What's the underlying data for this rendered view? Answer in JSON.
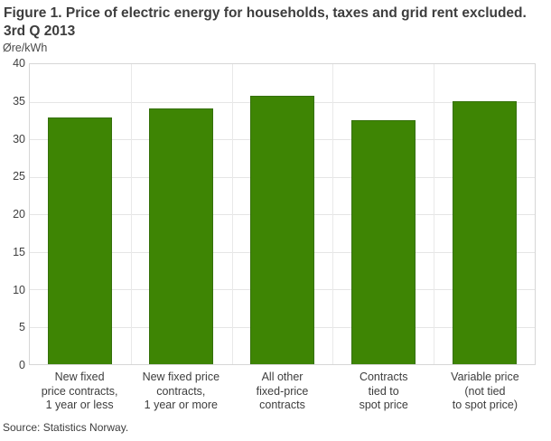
{
  "source": "Source: Statistics Norway.",
  "chart_data": {
    "type": "bar",
    "title": "Figure 1. Price of electric energy for households, taxes and grid rent excluded. 3rd Q 2013",
    "title_lines": [
      "Figure 1. Price of electric energy for households, taxes and grid rent excluded.",
      "3rd Q 2013"
    ],
    "ylabel": "Øre/kWh",
    "xlabel": "",
    "ylim": [
      0,
      40
    ],
    "ytick_step": 5,
    "yticks": [
      0,
      5,
      10,
      15,
      20,
      25,
      30,
      35,
      40
    ],
    "grid": true,
    "legend": null,
    "categories": [
      "New fixed price contracts, 1 year or less",
      "New fixed price contracts, 1 year or more",
      "All other fixed-price contracts",
      "Contracts tied to spot price",
      "Variable price (not tied to spot price)"
    ],
    "category_label_lines": [
      [
        "New fixed",
        "price contracts,",
        "1 year or less"
      ],
      [
        "New fixed price",
        "contracts,",
        "1 year or more"
      ],
      [
        "All other",
        "fixed-price",
        "contracts"
      ],
      [
        "Contracts",
        "tied to",
        "spot price"
      ],
      [
        "Variable price",
        "(not tied",
        "to spot price)"
      ]
    ],
    "values": [
      32.9,
      34.1,
      35.8,
      32.5,
      35.1
    ],
    "colors": {
      "bar_fill": "#3e8504",
      "bar_border": "#35700a",
      "gridline": "#e5e5e5",
      "slot_divider": "#e9e9e9",
      "plot_border": "#d6d6d6",
      "text": "#3d3d3d"
    }
  }
}
